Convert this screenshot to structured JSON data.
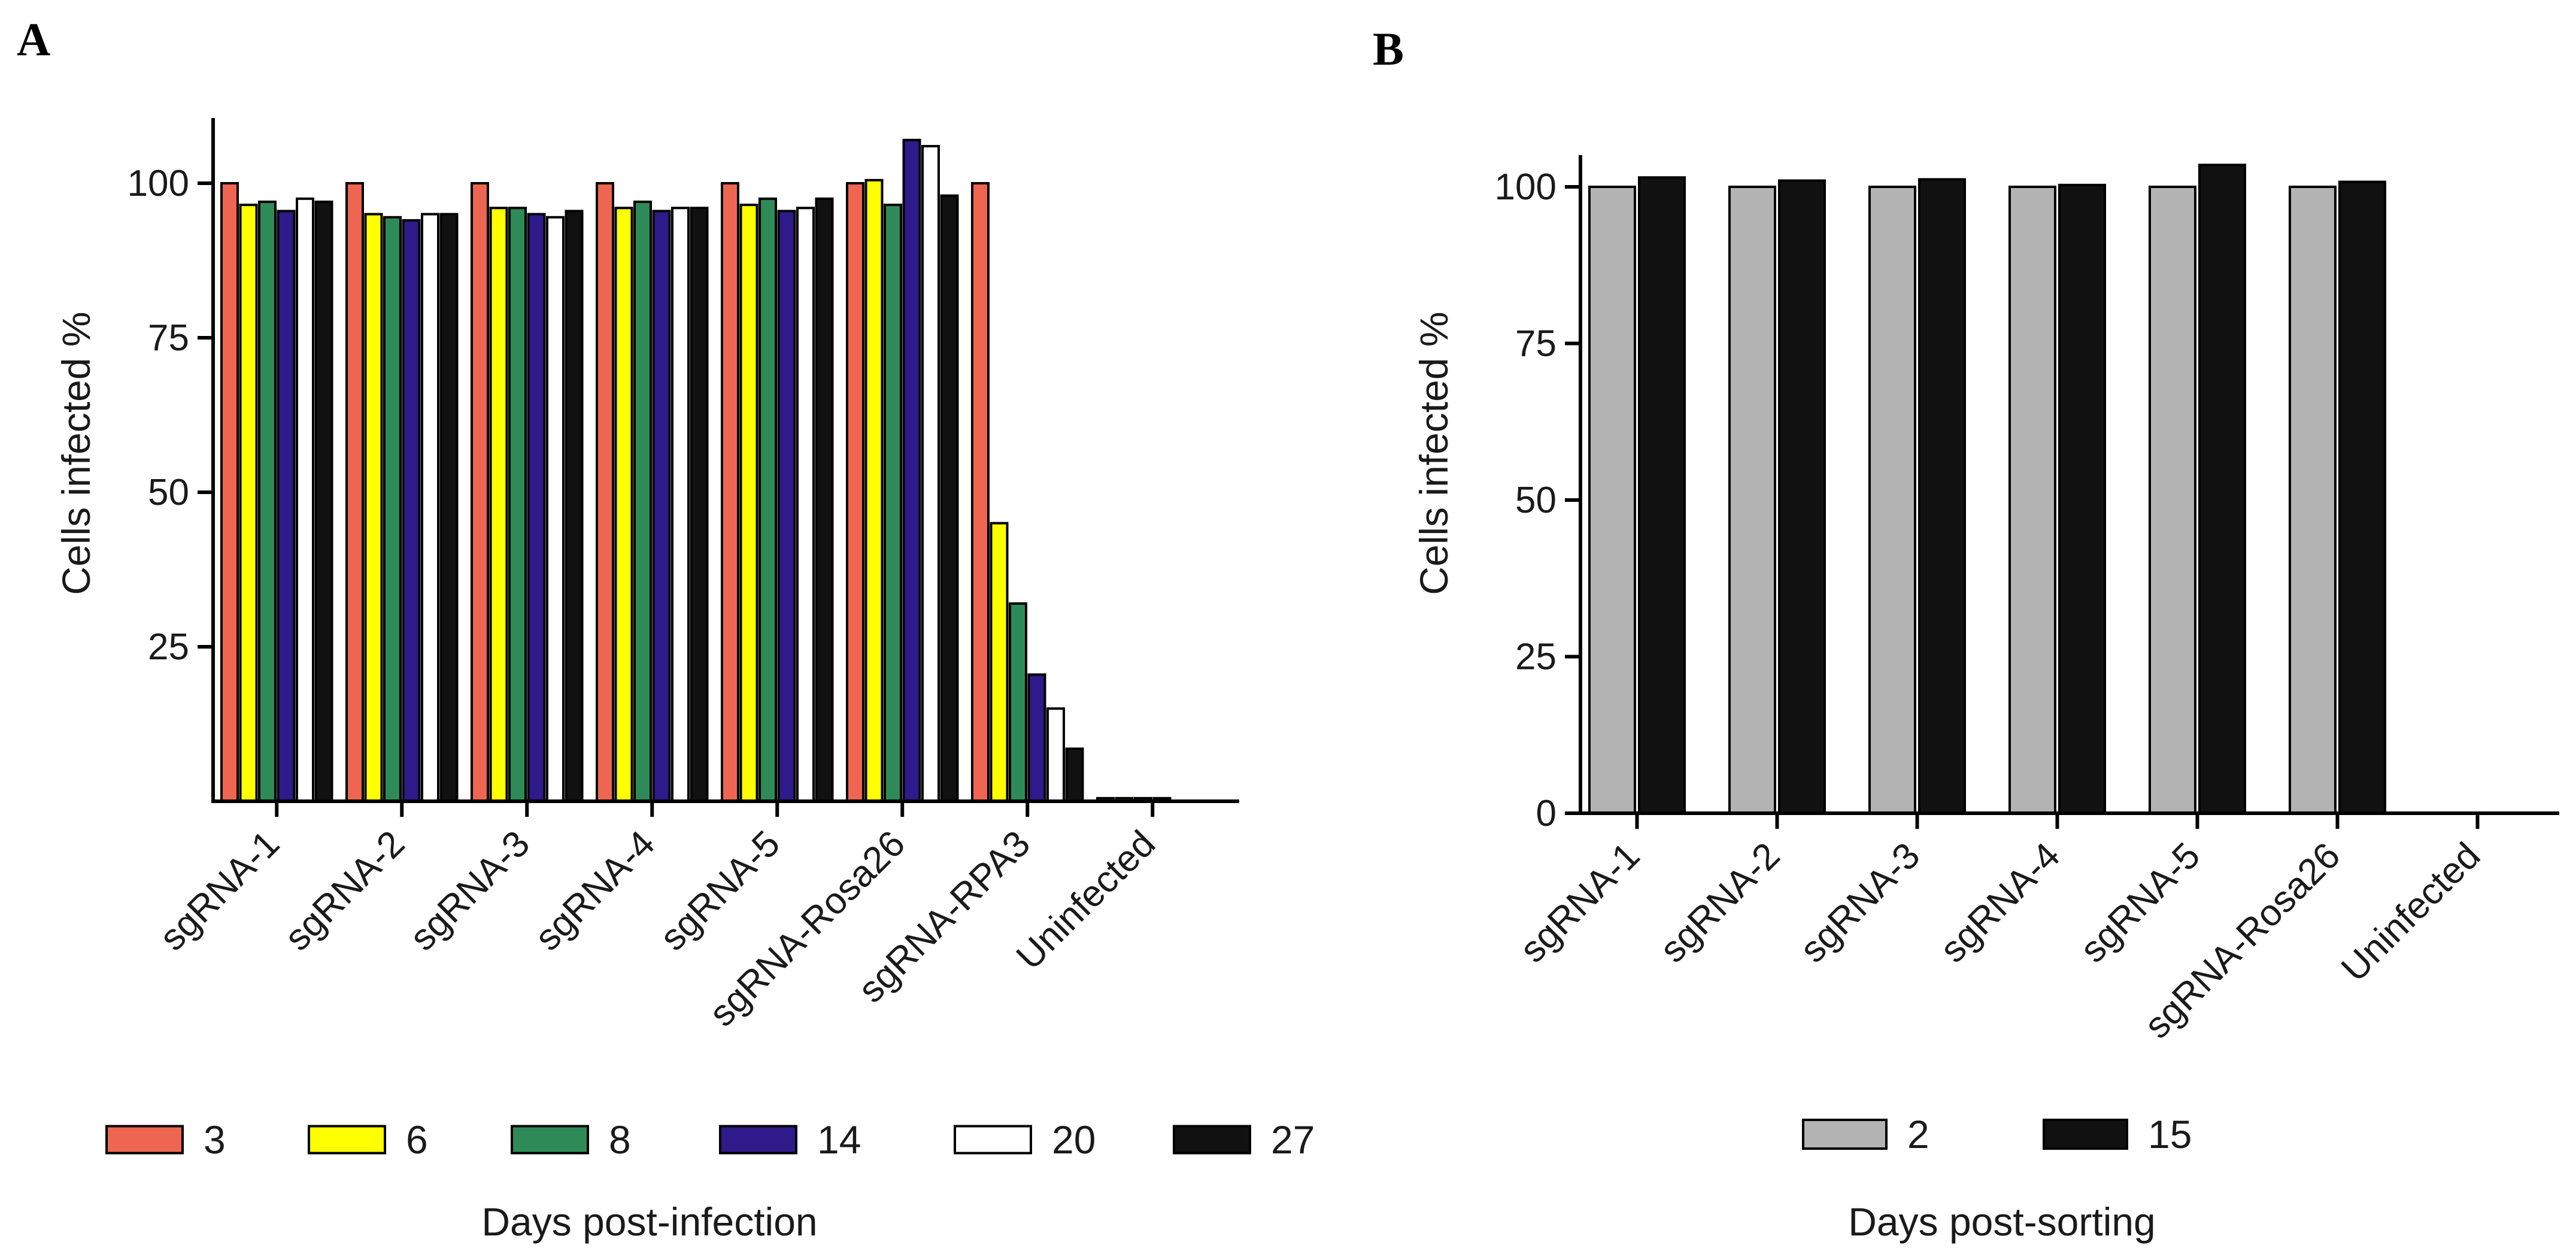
{
  "chart_data": [
    {
      "panel": "A",
      "type": "bar",
      "ylabel": "Cells infected %",
      "xlabel": "",
      "ylim": [
        0,
        110
      ],
      "yticks": [
        25,
        50,
        75,
        100
      ],
      "categories": [
        "sgRNA-1",
        "sgRNA-2",
        "sgRNA-3",
        "sgRNA-4",
        "sgRNA-5",
        "sgRNA-Rosa26",
        "sgRNA-RPA3",
        "Uninfected"
      ],
      "legend_title": "Days post-infection",
      "legend_position": "bottom",
      "series": [
        {
          "name": "3",
          "color": "#ee6651",
          "values": [
            100,
            100,
            100,
            100,
            100,
            100,
            100,
            0.5
          ]
        },
        {
          "name": "6",
          "color": "#ffff00",
          "values": [
            96.5,
            95,
            96,
            96,
            96.5,
            100.5,
            45,
            0.5
          ]
        },
        {
          "name": "8",
          "color": "#2e8b57",
          "values": [
            97,
            94.5,
            96,
            97,
            97.5,
            96.5,
            32,
            0.5
          ]
        },
        {
          "name": "14",
          "color": "#2e1a8a",
          "values": [
            95.5,
            94,
            95,
            95.5,
            95.5,
            107,
            20.5,
            0.5
          ]
        },
        {
          "name": "20",
          "color": "#ffffff",
          "values": [
            97.5,
            95,
            94.5,
            96,
            96,
            106,
            15,
            0
          ]
        },
        {
          "name": "27",
          "color": "#111111",
          "values": [
            97,
            95,
            95.5,
            96,
            97.5,
            98,
            8.5,
            0
          ]
        }
      ]
    },
    {
      "panel": "B",
      "type": "bar",
      "ylabel": "Cells infected %",
      "xlabel": "",
      "ylim": [
        0,
        105
      ],
      "yticks": [
        0,
        25,
        50,
        75,
        100
      ],
      "categories": [
        "sgRNA-1",
        "sgRNA-2",
        "sgRNA-3",
        "sgRNA-4",
        "sgRNA-5",
        "sgRNA-Rosa26",
        "Uninfected"
      ],
      "legend_title": "Days post-sorting",
      "legend_position": "bottom",
      "series": [
        {
          "name": "2",
          "color": "#b3b3b3",
          "values": [
            100,
            100,
            100,
            100,
            100,
            100,
            0
          ]
        },
        {
          "name": "15",
          "color": "#111111",
          "values": [
            101.5,
            101,
            101.2,
            100.3,
            103.5,
            100.8,
            0
          ]
        }
      ]
    }
  ]
}
